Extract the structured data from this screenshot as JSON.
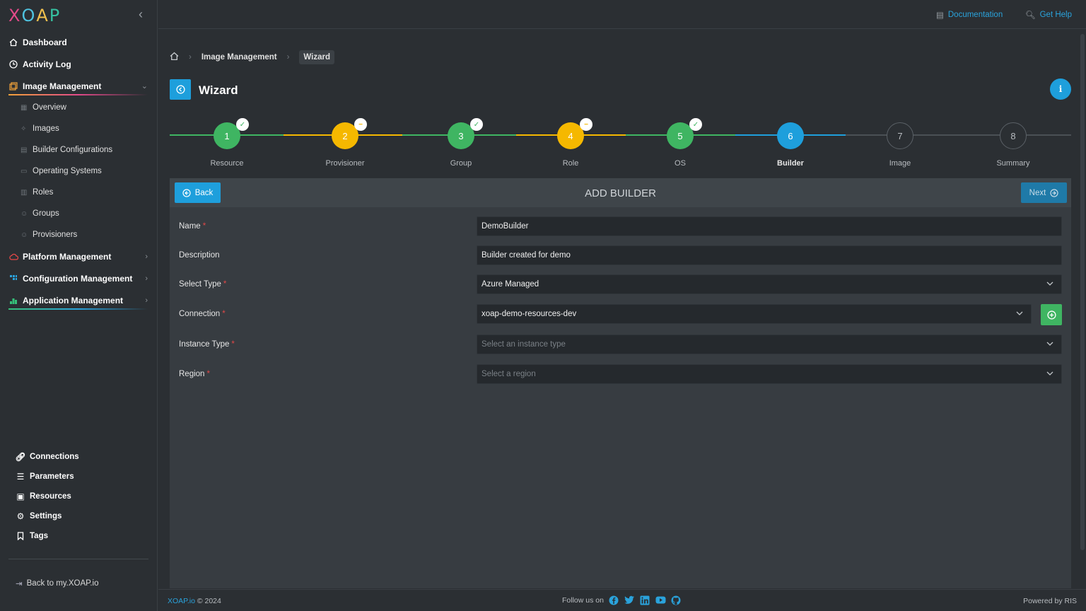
{
  "app": {
    "logo_letters": [
      "X",
      "O",
      "A",
      "P"
    ],
    "logo_colors": [
      "#e34a8a",
      "#4fc3e0",
      "#f2c14e",
      "#36c0a0"
    ]
  },
  "sidebar": {
    "items": [
      {
        "label": "Dashboard",
        "icon": "home-icon"
      },
      {
        "label": "Activity Log",
        "icon": "clock-icon"
      },
      {
        "label": "Image Management",
        "icon": "images-icon",
        "expanded": true
      },
      {
        "label": "Platform Management",
        "icon": "cloud-icon"
      },
      {
        "label": "Configuration Management",
        "icon": "grid-icon"
      },
      {
        "label": "Application Management",
        "icon": "apps-icon"
      }
    ],
    "sub_items": [
      "Overview",
      "Images",
      "Builder Configurations",
      "Operating Systems",
      "Roles",
      "Groups",
      "Provisioners"
    ],
    "bottom_items": [
      "Connections",
      "Parameters",
      "Resources",
      "Settings",
      "Tags"
    ],
    "back_link": "Back to my.XOAP.io"
  },
  "topbar": {
    "documentation": "Documentation",
    "help": "Get Help"
  },
  "breadcrumb": {
    "section": "Image Management",
    "current": "Wizard"
  },
  "page": {
    "title": "Wizard"
  },
  "stepper": {
    "steps": [
      {
        "num": "1",
        "label": "Resource",
        "state": "done"
      },
      {
        "num": "2",
        "label": "Provisioner",
        "state": "skipped"
      },
      {
        "num": "3",
        "label": "Group",
        "state": "done"
      },
      {
        "num": "4",
        "label": "Role",
        "state": "skipped"
      },
      {
        "num": "5",
        "label": "OS",
        "state": "done"
      },
      {
        "num": "6",
        "label": "Builder",
        "state": "active"
      },
      {
        "num": "7",
        "label": "Image",
        "state": "pending"
      },
      {
        "num": "8",
        "label": "Summary",
        "state": "pending"
      }
    ],
    "colors": {
      "done": "#3fb562",
      "skipped": "#f5b800",
      "active": "#1e9fdc",
      "pending": "#2b2f33"
    }
  },
  "form": {
    "heading": "ADD BUILDER",
    "back_label": "Back",
    "next_label": "Next",
    "fields": {
      "name": {
        "label": "Name",
        "value": "DemoBuilder"
      },
      "description": {
        "label": "Description",
        "value": "Builder created for demo"
      },
      "type": {
        "label": "Select Type",
        "value": "Azure Managed"
      },
      "connection": {
        "label": "Connection",
        "value": "xoap-demo-resources-dev"
      },
      "instance_type": {
        "label": "Instance Type",
        "placeholder": "Select an instance type"
      },
      "region": {
        "label": "Region",
        "placeholder": "Select a region"
      }
    }
  },
  "footer": {
    "brand": "XOAP.io",
    "copyright": "© 2024",
    "follow": "Follow us on",
    "powered": "Powered by RIS"
  }
}
